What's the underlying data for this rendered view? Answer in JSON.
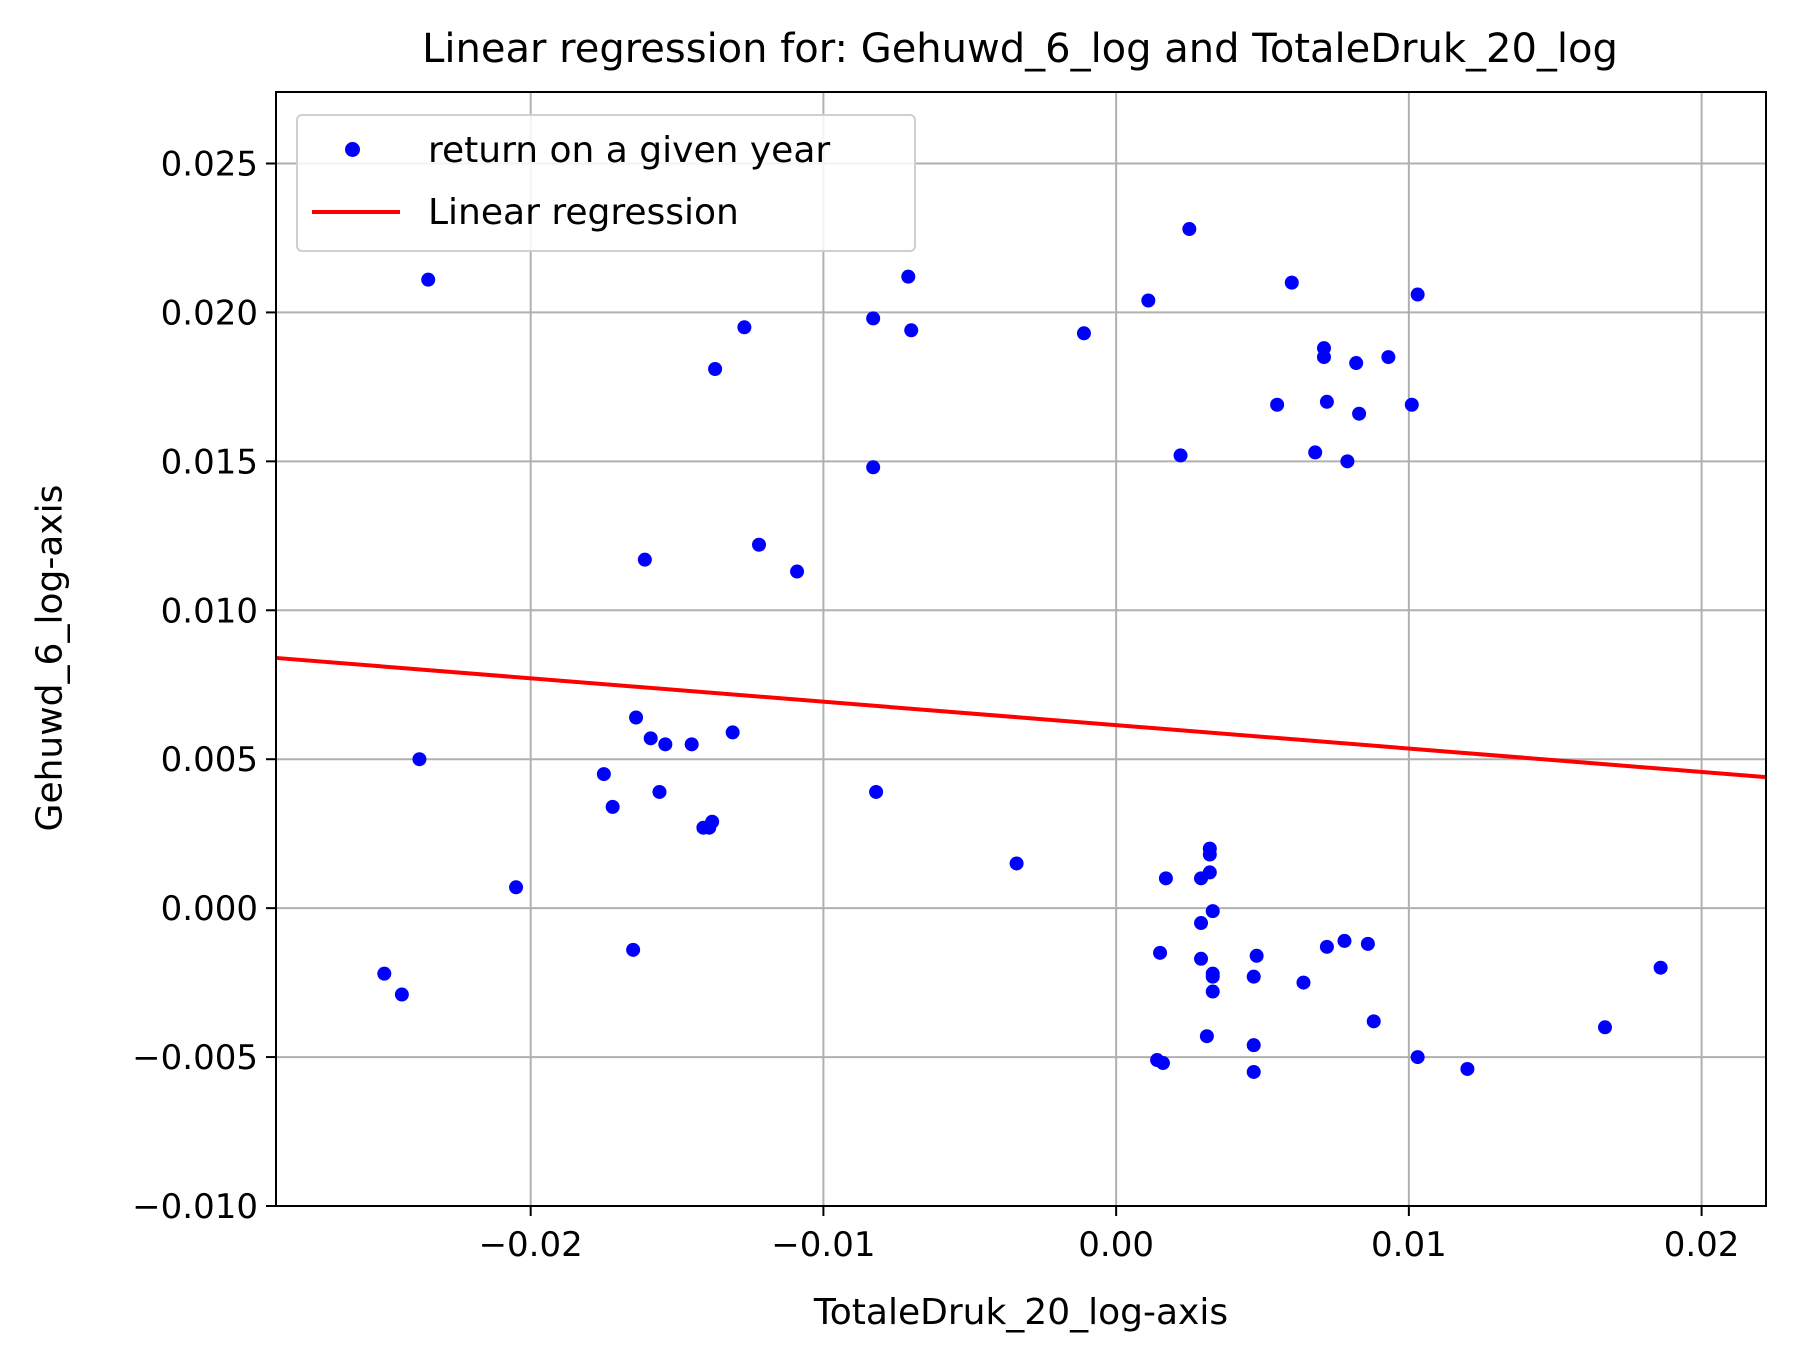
{
  "chart_data": {
    "type": "scatter",
    "title": "Linear regression for: Gehuwd_6_log and TotaleDruk_20_log",
    "xlabel": "TotaleDruk_20_log-axis",
    "ylabel": "Gehuwd_6_log-axis",
    "xlim": [
      -0.0287,
      0.0222
    ],
    "ylim": [
      -0.01,
      0.0274
    ],
    "xticks": [
      -0.02,
      -0.01,
      0.0,
      0.01,
      0.02
    ],
    "xtick_labels": [
      "−0.02",
      "−0.01",
      "0.00",
      "0.01",
      "0.02"
    ],
    "yticks": [
      -0.01,
      -0.005,
      0.0,
      0.005,
      0.01,
      0.015,
      0.02,
      0.025
    ],
    "ytick_labels": [
      "−0.010",
      "−0.005",
      "0.000",
      "0.005",
      "0.010",
      "0.015",
      "0.020",
      "0.025"
    ],
    "grid": true,
    "legend_position": "upper-left",
    "series": [
      {
        "name": "return on a given year",
        "kind": "scatter",
        "color": "#0000ff",
        "points": [
          [
            -0.025,
            -0.0022
          ],
          [
            -0.0244,
            -0.0029
          ],
          [
            -0.0235,
            0.0211
          ],
          [
            -0.0238,
            0.005
          ],
          [
            -0.0205,
            0.0007
          ],
          [
            -0.0175,
            0.0045
          ],
          [
            -0.0172,
            0.0034
          ],
          [
            -0.0165,
            -0.0014
          ],
          [
            -0.0164,
            0.0064
          ],
          [
            -0.0161,
            0.0117
          ],
          [
            -0.0159,
            0.0057
          ],
          [
            -0.0156,
            0.0039
          ],
          [
            -0.0154,
            0.0055
          ],
          [
            -0.0145,
            0.0055
          ],
          [
            -0.0141,
            0.0027
          ],
          [
            -0.0139,
            0.0027
          ],
          [
            -0.0138,
            0.0029
          ],
          [
            -0.0137,
            0.0181
          ],
          [
            -0.0131,
            0.0059
          ],
          [
            -0.0127,
            0.0195
          ],
          [
            -0.0122,
            0.0122
          ],
          [
            -0.0109,
            0.0113
          ],
          [
            -0.0083,
            0.0148
          ],
          [
            -0.0083,
            0.0198
          ],
          [
            -0.0082,
            0.0039
          ],
          [
            -0.0071,
            0.0212
          ],
          [
            -0.007,
            0.0194
          ],
          [
            -0.0034,
            0.0015
          ],
          [
            -0.0011,
            0.0193
          ],
          [
            0.0011,
            0.0204
          ],
          [
            0.0014,
            -0.0051
          ],
          [
            0.0015,
            -0.0015
          ],
          [
            0.0016,
            -0.0052
          ],
          [
            0.0017,
            0.001
          ],
          [
            0.0022,
            0.0152
          ],
          [
            0.0025,
            0.0228
          ],
          [
            0.0029,
            0.001
          ],
          [
            0.0029,
            -0.0005
          ],
          [
            0.0029,
            -0.0017
          ],
          [
            0.0031,
            -0.0043
          ],
          [
            0.0032,
            0.002
          ],
          [
            0.0032,
            0.0018
          ],
          [
            0.0032,
            0.0012
          ],
          [
            0.0033,
            -0.0001
          ],
          [
            0.0033,
            -0.0022
          ],
          [
            0.0033,
            -0.0023
          ],
          [
            0.0033,
            -0.0028
          ],
          [
            0.0047,
            -0.0023
          ],
          [
            0.0047,
            -0.0046
          ],
          [
            0.0047,
            -0.0055
          ],
          [
            0.0048,
            -0.0016
          ],
          [
            0.0055,
            0.0169
          ],
          [
            0.006,
            0.021
          ],
          [
            0.0064,
            -0.0025
          ],
          [
            0.0068,
            0.0153
          ],
          [
            0.0071,
            0.0188
          ],
          [
            0.0071,
            0.0185
          ],
          [
            0.0072,
            0.017
          ],
          [
            0.0072,
            -0.0013
          ],
          [
            0.0078,
            -0.0011
          ],
          [
            0.0079,
            0.015
          ],
          [
            0.0082,
            0.0183
          ],
          [
            0.0083,
            0.0166
          ],
          [
            0.0086,
            -0.0012
          ],
          [
            0.0088,
            -0.0038
          ],
          [
            0.0093,
            0.0185
          ],
          [
            0.0101,
            0.0169
          ],
          [
            0.0103,
            0.0206
          ],
          [
            0.0103,
            -0.005
          ],
          [
            0.012,
            -0.0054
          ],
          [
            0.0167,
            -0.004
          ],
          [
            0.0186,
            -0.002
          ]
        ]
      },
      {
        "name": "Linear regression",
        "kind": "line",
        "color": "#ff0000",
        "points": [
          [
            -0.0287,
            0.0084
          ],
          [
            0.0222,
            0.0044
          ]
        ]
      }
    ]
  }
}
